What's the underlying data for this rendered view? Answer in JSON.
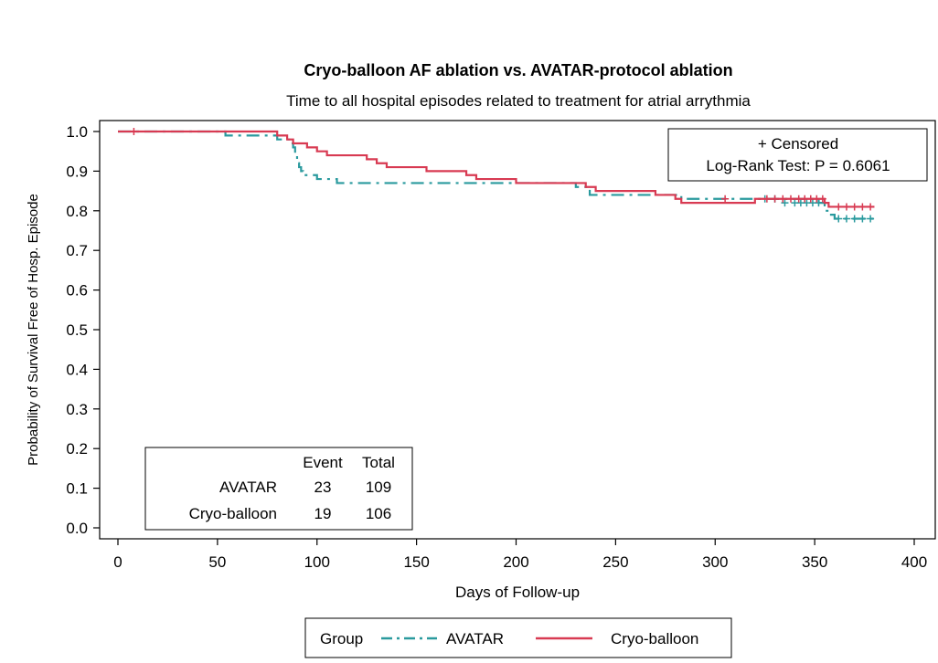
{
  "chart_data": {
    "type": "line",
    "title": "Cryo-balloon AF ablation vs. AVATAR-protocol ablation",
    "subtitle": "Time to all hospital episodes related to treatment for atrial arrythmia",
    "xlabel": "Days of Follow-up",
    "ylabel": "Probability of Survival Free of Hosp. Episode",
    "xlim": [
      0,
      400
    ],
    "ylim": [
      0,
      1.0
    ],
    "x_ticks": [
      "0",
      "50",
      "100",
      "150",
      "200",
      "250",
      "300",
      "350",
      "400"
    ],
    "y_ticks": [
      "0.0",
      "0.1",
      "0.2",
      "0.3",
      "0.4",
      "0.5",
      "0.6",
      "0.7",
      "0.8",
      "0.9",
      "1.0"
    ],
    "grid": false,
    "censor_note": "+ Censored",
    "test_label": "Log-Rank Test: P = 0.6061",
    "legend": {
      "position": "bottom",
      "title": "Group"
    },
    "summary_table": {
      "headers": [
        "",
        "Event",
        "Total"
      ],
      "rows": [
        [
          "AVATAR",
          "23",
          "109"
        ],
        [
          "Cryo-balloon",
          "19",
          "106"
        ]
      ]
    },
    "series": [
      {
        "name": "AVATAR",
        "color": "#2a9a9e",
        "style": "dash-dot",
        "steps": [
          [
            0,
            1.0
          ],
          [
            54,
            0.99
          ],
          [
            78,
            0.99
          ],
          [
            80,
            0.98
          ],
          [
            87,
            0.97
          ],
          [
            88,
            0.96
          ],
          [
            89,
            0.94
          ],
          [
            90,
            0.92
          ],
          [
            91,
            0.91
          ],
          [
            92,
            0.9
          ],
          [
            93,
            0.89
          ],
          [
            100,
            0.88
          ],
          [
            110,
            0.87
          ],
          [
            230,
            0.86
          ],
          [
            237,
            0.84
          ],
          [
            280,
            0.84
          ],
          [
            283,
            0.83
          ],
          [
            352,
            0.82
          ],
          [
            355,
            0.8
          ],
          [
            357,
            0.79
          ],
          [
            360,
            0.78
          ],
          [
            380,
            0.78
          ]
        ],
        "censored": [
          [
            325,
            0.83
          ],
          [
            330,
            0.83
          ],
          [
            335,
            0.82
          ],
          [
            340,
            0.82
          ],
          [
            343,
            0.82
          ],
          [
            346,
            0.82
          ],
          [
            349,
            0.82
          ],
          [
            352,
            0.82
          ],
          [
            362,
            0.78
          ],
          [
            366,
            0.78
          ],
          [
            370,
            0.78
          ],
          [
            374,
            0.78
          ],
          [
            378,
            0.78
          ]
        ]
      },
      {
        "name": "Cryo-balloon",
        "color": "#d83a52",
        "style": "solid",
        "steps": [
          [
            0,
            1.0
          ],
          [
            77,
            1.0
          ],
          [
            80,
            0.99
          ],
          [
            85,
            0.98
          ],
          [
            88,
            0.97
          ],
          [
            95,
            0.96
          ],
          [
            100,
            0.95
          ],
          [
            105,
            0.94
          ],
          [
            125,
            0.93
          ],
          [
            130,
            0.92
          ],
          [
            135,
            0.91
          ],
          [
            155,
            0.9
          ],
          [
            175,
            0.89
          ],
          [
            180,
            0.88
          ],
          [
            190,
            0.88
          ],
          [
            200,
            0.87
          ],
          [
            235,
            0.86
          ],
          [
            240,
            0.85
          ],
          [
            270,
            0.84
          ],
          [
            280,
            0.83
          ],
          [
            283,
            0.82
          ],
          [
            320,
            0.83
          ],
          [
            355,
            0.82
          ],
          [
            357,
            0.81
          ],
          [
            380,
            0.81
          ]
        ],
        "censored": [
          [
            8,
            1.0
          ],
          [
            305,
            0.83
          ],
          [
            326,
            0.83
          ],
          [
            330,
            0.83
          ],
          [
            334,
            0.83
          ],
          [
            338,
            0.83
          ],
          [
            342,
            0.83
          ],
          [
            345,
            0.83
          ],
          [
            348,
            0.83
          ],
          [
            351,
            0.83
          ],
          [
            354,
            0.83
          ],
          [
            362,
            0.81
          ],
          [
            366,
            0.81
          ],
          [
            370,
            0.81
          ],
          [
            374,
            0.81
          ],
          [
            378,
            0.81
          ]
        ]
      }
    ]
  }
}
